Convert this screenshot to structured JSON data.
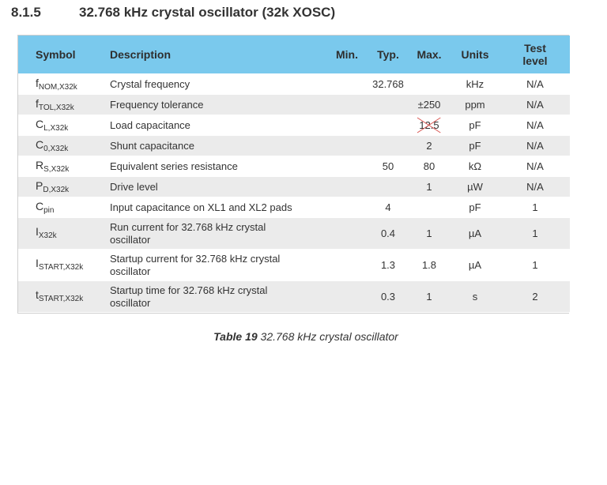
{
  "section": {
    "number": "8.1.5",
    "title": "32.768 kHz crystal oscillator (32k XOSC)"
  },
  "table": {
    "headers": {
      "symbol": "Symbol",
      "description": "Description",
      "min": "Min.",
      "typ": "Typ.",
      "max": "Max.",
      "units": "Units",
      "test_level_line1": "Test",
      "test_level_line2": "level"
    },
    "rows": [
      {
        "sym": "f",
        "sub": "NOM,X32k",
        "description": "Crystal frequency",
        "min": "",
        "typ": "32.768",
        "max": "",
        "units": "kHz",
        "test_level": "N/A"
      },
      {
        "sym": "f",
        "sub": "TOL,X32k",
        "description": "Frequency tolerance",
        "min": "",
        "typ": "",
        "max": "±250",
        "units": "ppm",
        "test_level": "N/A"
      },
      {
        "sym": "C",
        "sub": "L,X32k",
        "description": "Load capacitance",
        "min": "",
        "typ": "",
        "max": "12.5",
        "units": "pF",
        "test_level": "N/A"
      },
      {
        "sym": "C",
        "sub": "0,X32k",
        "description": "Shunt capacitance",
        "min": "",
        "typ": "",
        "max": "2",
        "units": "pF",
        "test_level": "N/A"
      },
      {
        "sym": "R",
        "sub": "S,X32k",
        "description": "Equivalent series resistance",
        "min": "",
        "typ": "50",
        "max": "80",
        "units": "kΩ",
        "test_level": "N/A"
      },
      {
        "sym": "P",
        "sub": "D,X32k",
        "description": "Drive level",
        "min": "",
        "typ": "",
        "max": "1",
        "units": "µW",
        "test_level": "N/A"
      },
      {
        "sym": "C",
        "sub": "pin",
        "description": "Input capacitance on XL1 and XL2 pads",
        "min": "",
        "typ": "4",
        "max": "",
        "units": "pF",
        "test_level": "1"
      },
      {
        "sym": "I",
        "sub": "X32k",
        "description_line1": "Run current for 32.768 kHz crystal",
        "description_line2": "oscillator",
        "min": "",
        "typ": "0.4",
        "max": "1",
        "units": "µA",
        "test_level": "1"
      },
      {
        "sym": "I",
        "sub": "START,X32k",
        "description_line1": "Startup current for 32.768 kHz crystal",
        "description_line2": "oscillator",
        "min": "",
        "typ": "1.3",
        "max": "1.8",
        "units": "µA",
        "test_level": "1"
      },
      {
        "sym": "t",
        "sub": "START,X32k",
        "description_line1": "Startup time for 32.768 kHz crystal",
        "description_line2": "oscillator",
        "min": "",
        "typ": "0.3",
        "max": "1",
        "units": "s",
        "test_level": "2"
      }
    ]
  },
  "caption": {
    "label": "Table 19",
    "text": "32.768 kHz crystal oscillator"
  },
  "colors": {
    "header_bg": "#7ac9ed",
    "alt_row_bg": "#ebebeb",
    "strike_mark": "#d9534f"
  }
}
